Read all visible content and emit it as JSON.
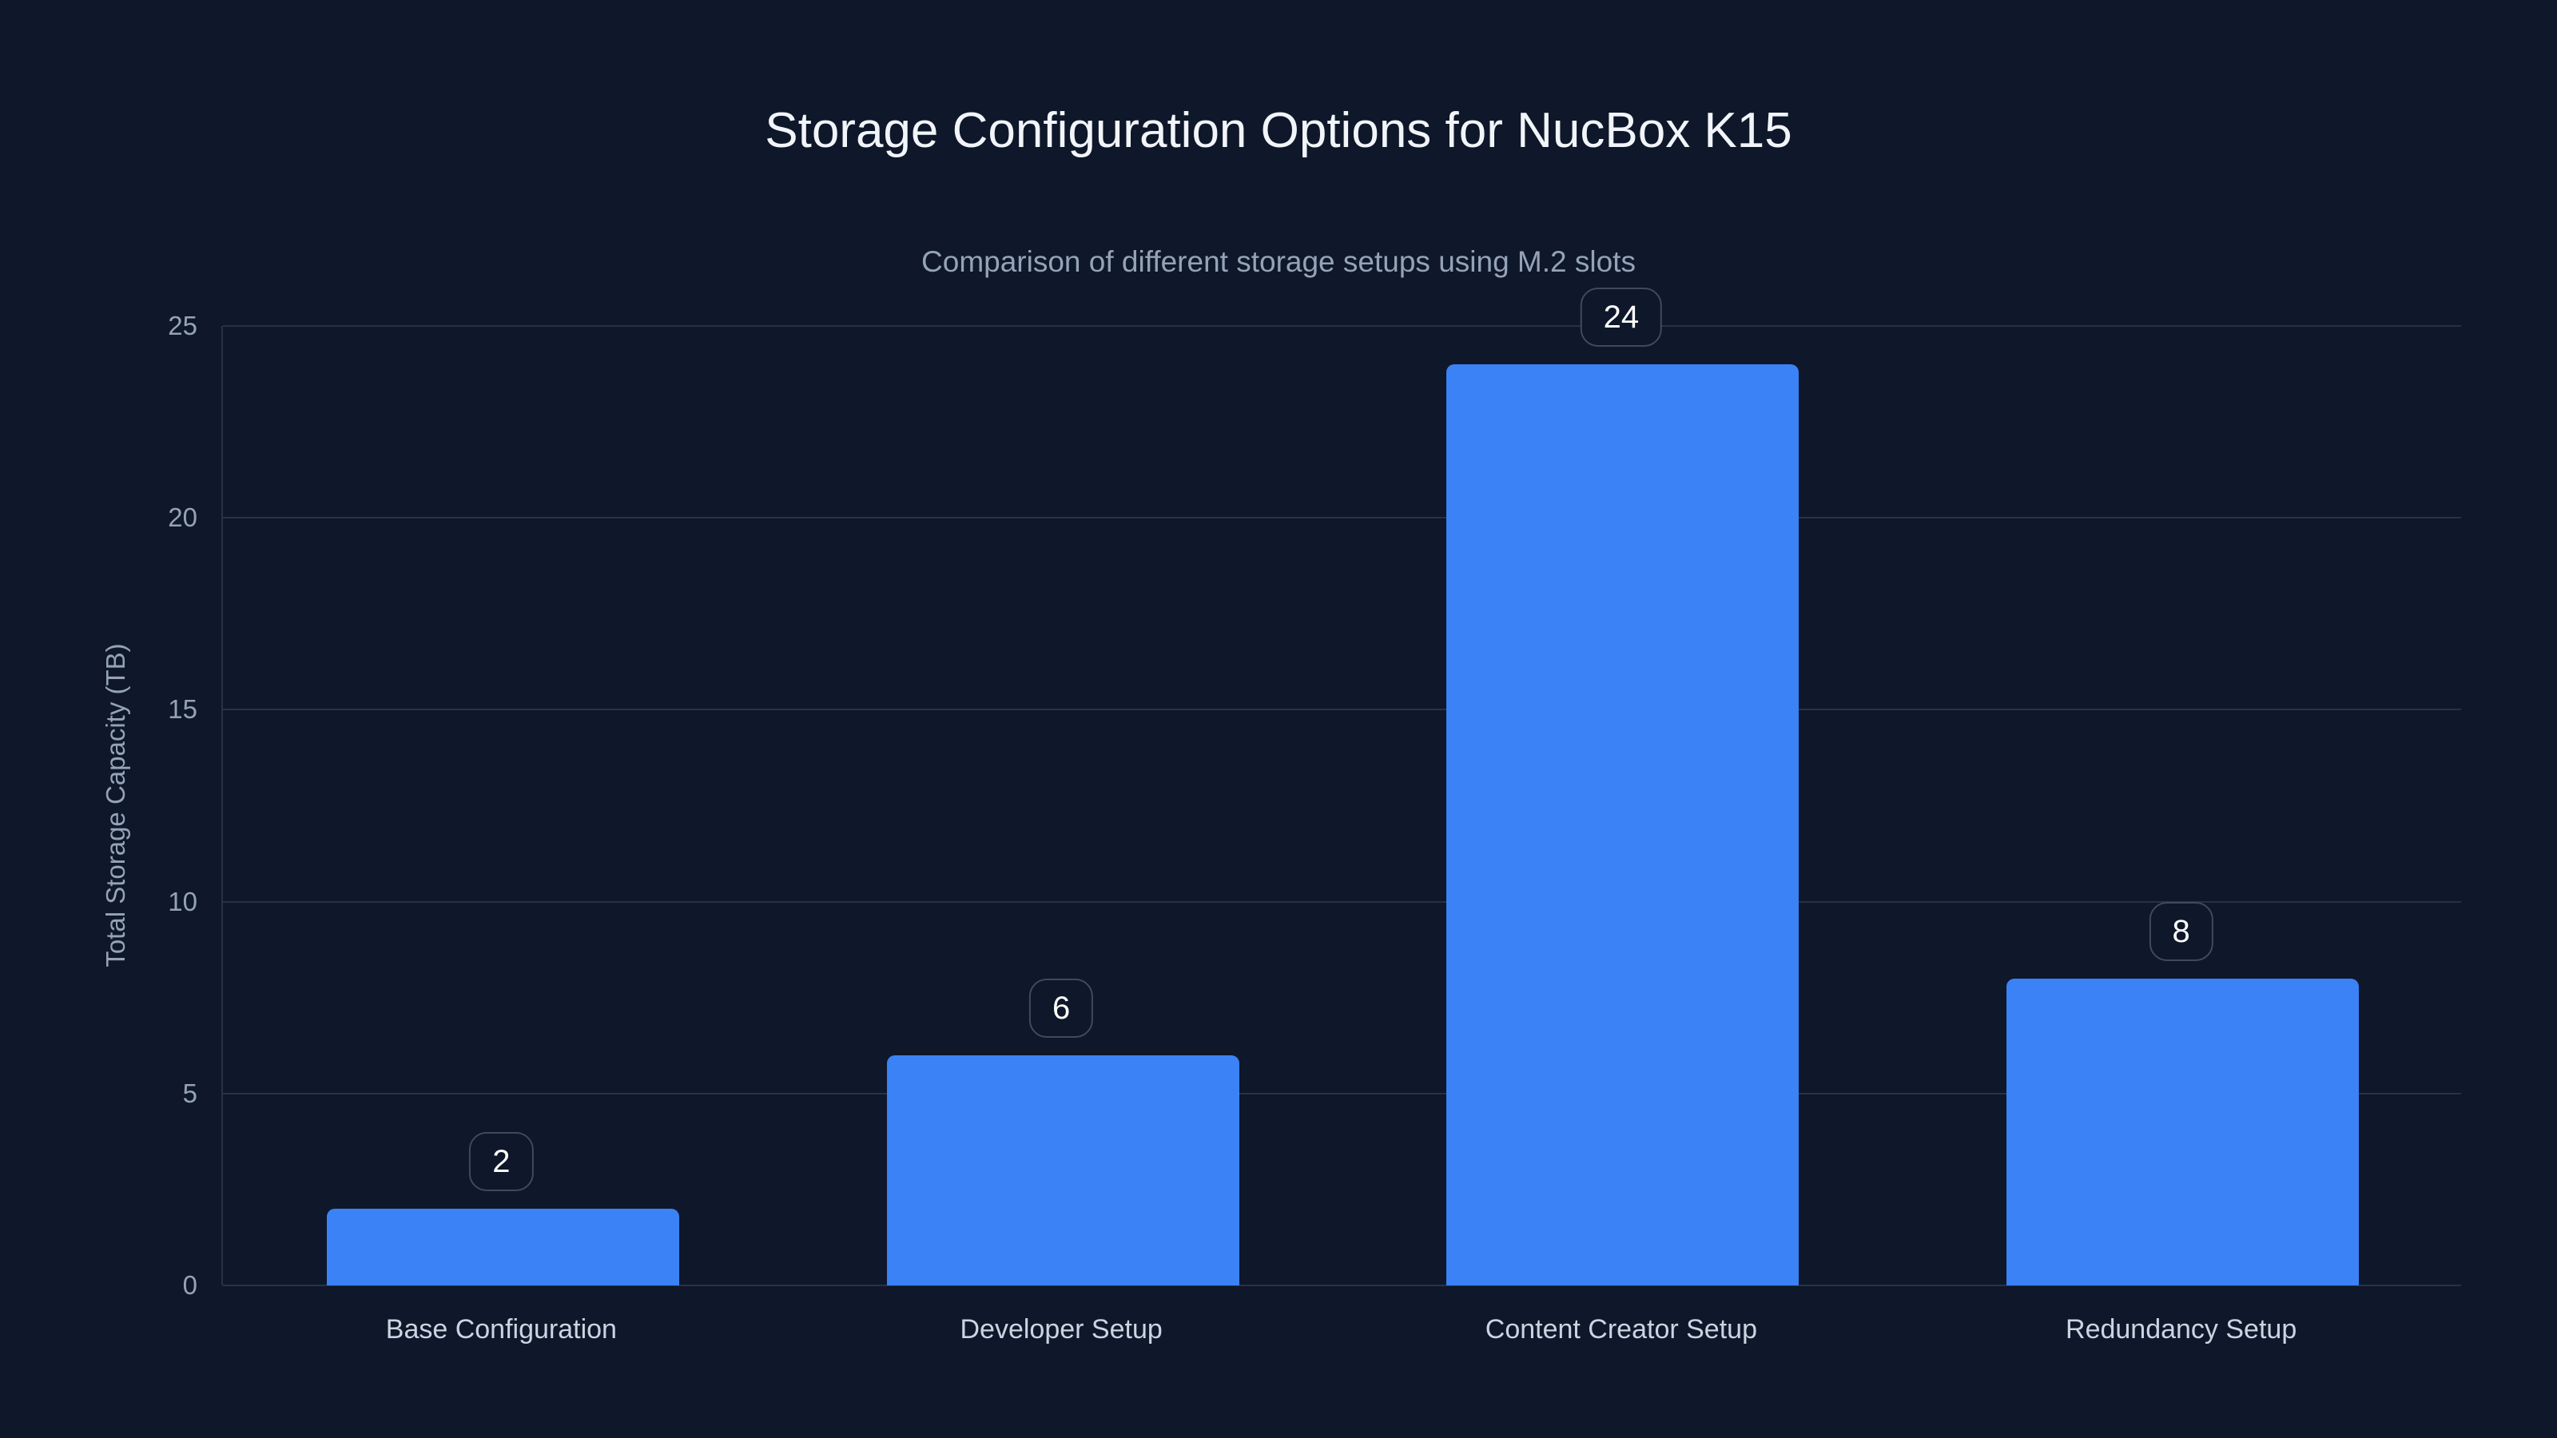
{
  "header": {
    "title": "Storage Configuration Options for NucBox K15",
    "subtitle": "Comparison of different storage setups using M.2 slots"
  },
  "chart_data": {
    "type": "bar",
    "title": "Storage Configuration Options for NucBox K15",
    "subtitle": "Comparison of different storage setups using M.2 slots",
    "categories": [
      "Base Configuration",
      "Developer Setup",
      "Content Creator Setup",
      "Redundancy Setup"
    ],
    "values": [
      2,
      6,
      24,
      8
    ],
    "value_labels": [
      "2",
      "6",
      "24",
      "8"
    ],
    "xlabel": "",
    "ylabel": "Total Storage Capacity (TB)",
    "ylim": [
      0,
      25
    ],
    "yticks": [
      0,
      5,
      10,
      15,
      20,
      25
    ],
    "grid": "horizontal",
    "legend": "none"
  },
  "colors": {
    "background": "#0f172a",
    "bar": "#3b82f6",
    "gridline": "#26324a",
    "axis_text": "#94a3b8",
    "x_tick_text": "#cbd5e1",
    "title_text": "#f1f5f9",
    "subtitle_text": "#94a3b8",
    "value_text": "#ffffff",
    "badge_border": "#3e4a5e",
    "badge_background": "#0f172a"
  }
}
